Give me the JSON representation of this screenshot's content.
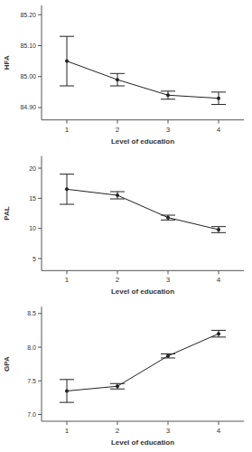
{
  "chart_data": [
    {
      "type": "line",
      "x_label": "Level of education",
      "y_label": "HFA",
      "categories": [
        "1",
        "2",
        "3",
        "4"
      ],
      "values": [
        85.05,
        84.99,
        84.94,
        84.93
      ],
      "errors": [
        0.08,
        0.02,
        0.013,
        0.02
      ],
      "color": "#222222",
      "marker": "circle",
      "ylim": [
        84.86,
        85.23
      ],
      "yticks": [
        {
          "value": 84.9,
          "label": "84.90"
        },
        {
          "value": 85.0,
          "label": "85.00"
        },
        {
          "value": 85.1,
          "label": "85.10"
        },
        {
          "value": 85.2,
          "label": "85.20"
        }
      ]
    },
    {
      "type": "line",
      "x_label": "Level of education",
      "y_label": "PAL",
      "categories": [
        "1",
        "2",
        "3",
        "4"
      ],
      "values": [
        16.5,
        15.5,
        11.8,
        9.8
      ],
      "errors": [
        2.5,
        0.6,
        0.4,
        0.5
      ],
      "color": "#222222",
      "marker": "circle",
      "ylim": [
        3,
        22
      ],
      "yticks": [
        5,
        10,
        15,
        20
      ]
    },
    {
      "type": "line",
      "x_label": "Level of education",
      "y_label": "GPA",
      "categories": [
        "1",
        "2",
        "3",
        "4"
      ],
      "values": [
        7.35,
        7.42,
        7.87,
        8.2
      ],
      "errors": [
        0.17,
        0.04,
        0.03,
        0.05
      ],
      "color": "#222222",
      "marker": "circle",
      "ylim": [
        6.9,
        8.6
      ],
      "yticks": [
        {
          "value": 7.0,
          "label": "7.0"
        },
        7.5,
        {
          "value": 8.0,
          "label": "8.0"
        },
        8.5
      ]
    }
  ]
}
